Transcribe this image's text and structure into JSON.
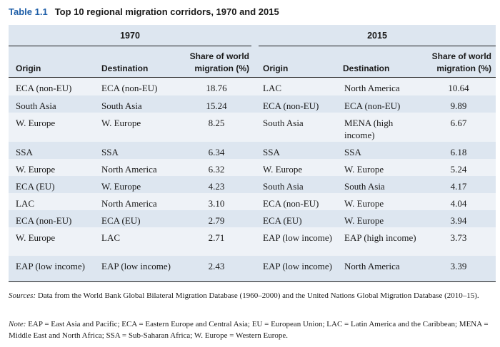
{
  "title": {
    "number": "Table 1.1",
    "text": "Top 10 regional migration corridors, 1970 and 2015"
  },
  "groups": [
    "1970",
    "2015"
  ],
  "headers": [
    "Origin",
    "Destination",
    "Share of world migration (%)",
    "Origin",
    "Destination",
    "Share of world migration (%)"
  ],
  "rows": [
    [
      "ECA (non-EU)",
      "ECA (non-EU)",
      "18.76",
      "LAC",
      "North America",
      "10.64"
    ],
    [
      "South Asia",
      "South Asia",
      "15.24",
      "ECA (non-EU)",
      "ECA (non-EU)",
      "9.89"
    ],
    [
      "W. Europe",
      "W. Europe",
      "8.25",
      "South Asia",
      "MENA (high income)",
      "6.67"
    ],
    [
      "SSA",
      "SSA",
      "6.34",
      "SSA",
      "SSA",
      "6.18"
    ],
    [
      "W. Europe",
      "North America",
      "6.32",
      "W. Europe",
      "W. Europe",
      "5.24"
    ],
    [
      "ECA (EU)",
      "W. Europe",
      "4.23",
      "South Asia",
      "South Asia",
      "4.17"
    ],
    [
      "LAC",
      "North America",
      "3.10",
      "ECA (non-EU)",
      "W. Europe",
      "4.04"
    ],
    [
      "ECA (non-EU)",
      "ECA (EU)",
      "2.79",
      "ECA (EU)",
      "W. Europe",
      "3.94"
    ],
    [
      "W. Europe",
      "LAC",
      "2.71",
      "EAP (low income)",
      "EAP (high income)",
      "3.73"
    ],
    [
      "EAP (low income)",
      "EAP (low income)",
      "2.43",
      "EAP (low income)",
      "North America",
      "3.39"
    ]
  ],
  "sources": {
    "label": "Sources:",
    "text": " Data from the World Bank Global Bilateral Migration Database (1960–2000) and the United Nations Global Migration Database (2010–15)."
  },
  "note": {
    "label": "Note:",
    "text": " EAP = East Asia and Pacific; ECA = Eastern Europe and Central Asia; EU = European Union; LAC = Latin America and the Caribbean; MENA = Middle East and North Africa; SSA = Sub-Saharan Africa; W. Europe = Western Europe."
  }
}
